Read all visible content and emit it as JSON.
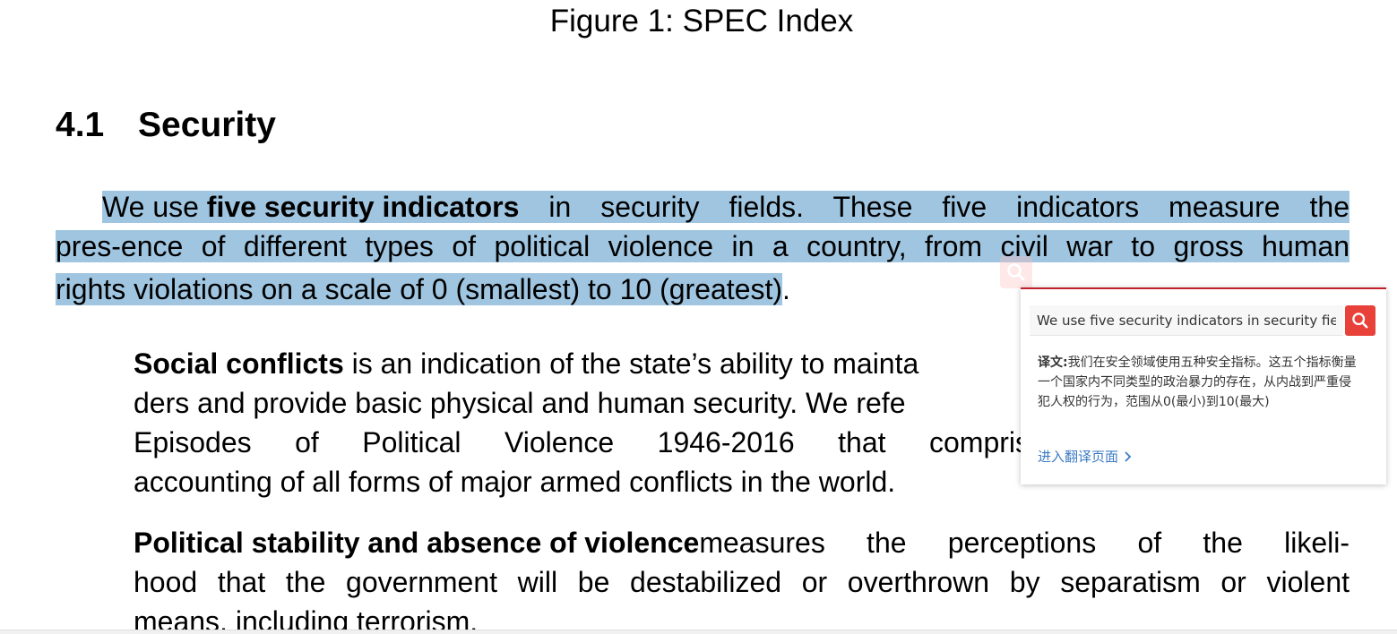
{
  "document": {
    "caption": "Figure 1: SPEC Index",
    "section": {
      "number": "4.1",
      "title": "Security"
    },
    "intro": {
      "line1": [
        "We use ",
        "five security indicators",
        " in security fields. These five indicators measure the"
      ],
      "line2": "pres-ence of different types of political violence in a country, from civil war to gross human",
      "line3": "rights violations on a scale of 0 (smallest) to 10 (greatest)",
      "line3_tail": "."
    },
    "items": [
      {
        "term": "Social conflicts",
        "line1_rest": " is an indication of the state’s ability to mainta",
        "line2": "ders and provide basic physical and human security. We refe",
        "line3_words": [
          "Episodes",
          "of",
          "Political",
          "Violence",
          "1946-2016",
          "that",
          "compris"
        ],
        "line4": "accounting of all forms of major armed conflicts in the world."
      },
      {
        "term": "Political stability and absence of violence",
        "line1_rest": " measures the perceptions of the likeli-",
        "line2": "hood that the government will be destabilized or overthrown by separatism or violent",
        "line3": "means, including terrorism."
      }
    ]
  },
  "translate_popup": {
    "query": "We use five security indicators in security fiel",
    "translation_label": "译文:",
    "translation_text": "我们在安全领域使用五种安全指标。这五个指标衡量一个国家内不同类型的政治暴力的存在，从内战到严重侵犯人权的行为，范围从0(最小)到10(最大)",
    "goto_label": "进入翻译页面",
    "icons": {
      "search": "search-icon",
      "chevron": "chevron-right-icon"
    },
    "colors": {
      "accent": "#e8413a",
      "link": "#3d7bc4",
      "border_top": "#c0212b"
    }
  },
  "selection_color": "#9fc5e0"
}
